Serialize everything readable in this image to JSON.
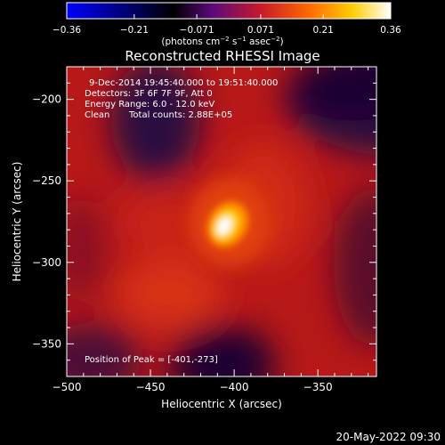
{
  "chart_data": {
    "type": "heatmap",
    "title": "Reconstructed RHESSI Image",
    "xlabel": "Heliocentric X (arcsec)",
    "ylabel": "Heliocentric Y (arcsec)",
    "xlim": [
      -500,
      -315
    ],
    "ylim": [
      -370,
      -180
    ],
    "x_ticks": [
      -500,
      -450,
      -400,
      -350
    ],
    "y_ticks": [
      -350,
      -300,
      -250,
      -200
    ],
    "tick_labels": {
      "x": [
        "−500",
        "−450",
        "−400",
        "−350"
      ],
      "y": [
        "−350",
        "−300",
        "−250",
        "−200"
      ]
    },
    "colorbar": {
      "range": [
        -0.36,
        0.36
      ],
      "ticks": [
        -0.36,
        -0.21,
        -0.071,
        0.071,
        0.21,
        0.36
      ],
      "tick_labels": [
        "−0.36",
        "−0.21",
        "−0.071",
        "0.071",
        "0.21",
        "0.36"
      ],
      "colormap": [
        "#0000ff",
        "#000000",
        "#5a0a7a",
        "#c81a2a",
        "#ff6a00",
        "#ffcc00",
        "#ffffff"
      ]
    },
    "annotations": {
      "time_range": "9-Dec-2014 19:45:40.000 to 19:51:40.000",
      "detectors": "Detectors: 3F 6F 7F 9F, Att 0",
      "energy": "Energy Range: 6.0 - 12.0 keV",
      "clean": "Clean",
      "total_counts": "Total counts: 2.88E+05",
      "peak": "Position of Peak = [-401,-273]"
    },
    "peak": {
      "x": -401,
      "y": -273
    }
  },
  "timestamp": "20-May-2022 09:30"
}
